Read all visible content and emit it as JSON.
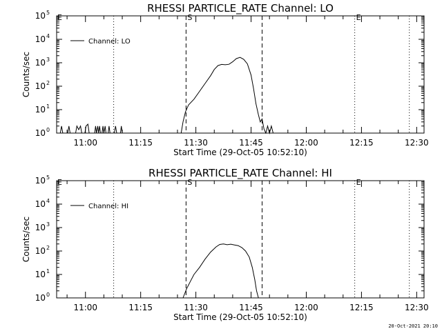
{
  "chart_data": [
    {
      "type": "line",
      "title": "RHESSI PARTICLE_RATE Channel: LO",
      "xlabel": "Start Time (29-Oct-05 10:52:10)",
      "ylabel": "Counts/sec",
      "yscale": "log",
      "ylim": [
        1,
        100000
      ],
      "y_ticks": [
        {
          "base": "10",
          "exp": "0"
        },
        {
          "base": "10",
          "exp": "1"
        },
        {
          "base": "10",
          "exp": "2"
        },
        {
          "base": "10",
          "exp": "3"
        },
        {
          "base": "10",
          "exp": "4"
        },
        {
          "base": "10",
          "exp": "5"
        }
      ],
      "xlim": [
        "10:52:10",
        "12:32:00"
      ],
      "x_ticks": [
        "11:00",
        "11:15",
        "11:30",
        "11:45",
        "12:00",
        "12:15",
        "12:30"
      ],
      "legend": {
        "label": "Channel: LO",
        "placement": "top-left"
      },
      "markers": [
        {
          "label": "E",
          "time": "10:52:10",
          "style": "none"
        },
        {
          "label": "",
          "time": "11:07:40",
          "style": "dotted"
        },
        {
          "label": "S",
          "time": "11:27:20",
          "style": "dashed"
        },
        {
          "label": "",
          "time": "11:48:00",
          "style": "dashed"
        },
        {
          "label": "E",
          "time": "12:13:10",
          "style": "dotted"
        },
        {
          "label": "",
          "time": "12:28:00",
          "style": "dotted"
        }
      ],
      "series": [
        {
          "points": [
            [
              "10:53:10",
              1
            ],
            [
              "10:53:30",
              2
            ],
            [
              "10:53:50",
              1
            ],
            [
              "10:55:10",
              1
            ],
            [
              "10:55:30",
              2
            ],
            [
              "10:55:50",
              1
            ],
            [
              "10:57:20",
              1
            ],
            [
              "10:57:40",
              2
            ],
            [
              "10:58:10",
              1.4
            ],
            [
              "10:58:40",
              2
            ],
            [
              "10:59:00",
              1
            ],
            [
              "10:59:50",
              1
            ],
            [
              "11:00:10",
              2
            ],
            [
              "11:00:40",
              2.4
            ],
            [
              "11:01:00",
              1
            ],
            [
              "11:02:30",
              1
            ],
            [
              "11:02:45",
              2
            ],
            [
              "11:03:00",
              1
            ],
            [
              "11:03:20",
              2
            ],
            [
              "11:03:35",
              1
            ],
            [
              "11:03:50",
              2
            ],
            [
              "11:04:05",
              1
            ],
            [
              "11:04:30",
              1
            ],
            [
              "11:04:45",
              2
            ],
            [
              "11:05:00",
              1
            ],
            [
              "11:05:20",
              2
            ],
            [
              "11:05:35",
              1
            ],
            [
              "11:06:10",
              1
            ],
            [
              "11:06:25",
              2
            ],
            [
              "11:06:40",
              1
            ],
            [
              "11:07:50",
              1
            ],
            [
              "11:08:10",
              2
            ],
            [
              "11:08:30",
              1
            ],
            [
              "11:09:30",
              1
            ],
            [
              "11:09:45",
              2
            ],
            [
              "11:10:00",
              1
            ],
            [
              "11:26:00",
              1
            ],
            [
              "11:26:30",
              3
            ],
            [
              "11:27:10",
              8
            ],
            [
              "11:28:00",
              16
            ],
            [
              "11:29:30",
              28
            ],
            [
              "11:31:00",
              60
            ],
            [
              "11:32:30",
              130
            ],
            [
              "11:34:00",
              280
            ],
            [
              "11:35:00",
              520
            ],
            [
              "11:36:00",
              760
            ],
            [
              "11:37:00",
              850
            ],
            [
              "11:38:00",
              820
            ],
            [
              "11:39:00",
              860
            ],
            [
              "11:40:00",
              1100
            ],
            [
              "11:41:00",
              1500
            ],
            [
              "11:42:00",
              1700
            ],
            [
              "11:43:00",
              1400
            ],
            [
              "11:44:00",
              900
            ],
            [
              "11:45:00",
              300
            ],
            [
              "11:45:40",
              80
            ],
            [
              "11:46:20",
              18
            ],
            [
              "11:47:00",
              6
            ],
            [
              "11:47:30",
              3
            ],
            [
              "11:48:00",
              4
            ],
            [
              "11:48:30",
              1.5
            ],
            [
              "11:49:00",
              1
            ],
            [
              "11:49:30",
              2
            ],
            [
              "11:50:00",
              1
            ],
            [
              "11:50:30",
              2
            ],
            [
              "11:51:00",
              1
            ]
          ]
        }
      ]
    },
    {
      "type": "line",
      "title": "RHESSI PARTICLE_RATE Channel: HI",
      "xlabel": "Start Time (29-Oct-05 10:52:10)",
      "ylabel": "Counts/sec",
      "yscale": "log",
      "ylim": [
        1,
        100000
      ],
      "y_ticks": [
        {
          "base": "10",
          "exp": "0"
        },
        {
          "base": "10",
          "exp": "1"
        },
        {
          "base": "10",
          "exp": "2"
        },
        {
          "base": "10",
          "exp": "3"
        },
        {
          "base": "10",
          "exp": "4"
        },
        {
          "base": "10",
          "exp": "5"
        }
      ],
      "xlim": [
        "10:52:10",
        "12:32:00"
      ],
      "x_ticks": [
        "11:00",
        "11:15",
        "11:30",
        "11:45",
        "12:00",
        "12:15",
        "12:30"
      ],
      "legend": {
        "label": "Channel: HI",
        "placement": "top-left"
      },
      "markers": [
        {
          "label": "E",
          "time": "10:52:10",
          "style": "none"
        },
        {
          "label": "",
          "time": "11:07:40",
          "style": "dotted"
        },
        {
          "label": "S",
          "time": "11:27:20",
          "style": "dashed"
        },
        {
          "label": "",
          "time": "11:48:00",
          "style": "dashed"
        },
        {
          "label": "E",
          "time": "12:13:10",
          "style": "dotted"
        },
        {
          "label": "",
          "time": "12:28:00",
          "style": "dotted"
        }
      ],
      "series": [
        {
          "points": [
            [
              "11:26:30",
              1
            ],
            [
              "11:27:30",
              2.5
            ],
            [
              "11:28:30",
              5
            ],
            [
              "11:29:30",
              10
            ],
            [
              "11:31:00",
              20
            ],
            [
              "11:32:30",
              45
            ],
            [
              "11:34:00",
              90
            ],
            [
              "11:35:30",
              150
            ],
            [
              "11:36:30",
              190
            ],
            [
              "11:37:30",
              200
            ],
            [
              "11:38:30",
              185
            ],
            [
              "11:39:30",
              195
            ],
            [
              "11:40:30",
              180
            ],
            [
              "11:41:30",
              170
            ],
            [
              "11:42:30",
              140
            ],
            [
              "11:43:30",
              100
            ],
            [
              "11:44:30",
              55
            ],
            [
              "11:45:20",
              20
            ],
            [
              "11:46:00",
              6
            ],
            [
              "11:46:30",
              2
            ],
            [
              "11:47:00",
              1
            ]
          ]
        }
      ]
    }
  ],
  "timestamp": "20-Oct-2021 20:10"
}
